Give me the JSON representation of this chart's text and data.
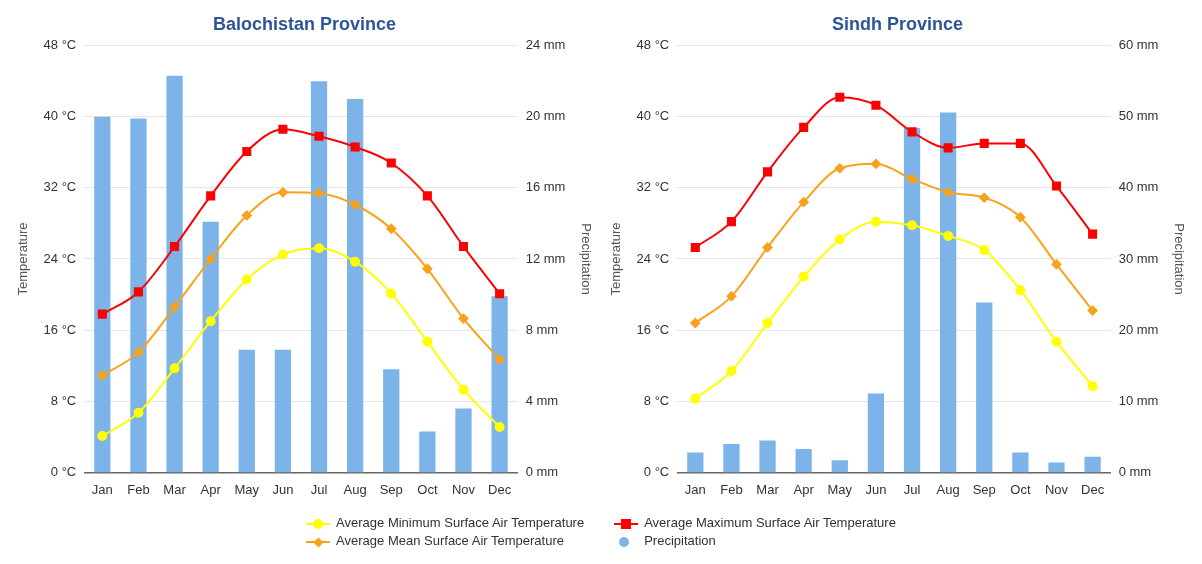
{
  "chart_data": [
    {
      "type": "bar",
      "title": "Balochistan Province",
      "ylabel": "Temperature",
      "y2label": "Precipitation",
      "categories": [
        "Jan",
        "Feb",
        "Mar",
        "Apr",
        "May",
        "Jun",
        "Jul",
        "Aug",
        "Sep",
        "Oct",
        "Nov",
        "Dec"
      ],
      "series": [
        {
          "name": "Average Minimum Surface Air Temperature",
          "type": "line",
          "color": "#ffff00",
          "marker": "circle",
          "values": [
            4.1,
            6.7,
            11.7,
            17.0,
            21.7,
            24.5,
            25.2,
            23.7,
            20.1,
            14.7,
            9.3,
            5.1
          ]
        },
        {
          "name": "Average Mean Surface Air Temperature",
          "type": "line",
          "color": "#f7a21b",
          "marker": "diamond",
          "values": [
            10.9,
            13.5,
            18.6,
            24.0,
            28.9,
            31.5,
            31.4,
            30.1,
            27.4,
            22.9,
            17.3,
            12.7
          ]
        },
        {
          "name": "Average Maximum Surface Air Temperature",
          "type": "line",
          "color": "#ff0000",
          "marker": "square",
          "values": [
            17.8,
            20.3,
            25.4,
            31.1,
            36.1,
            38.6,
            37.8,
            36.6,
            34.8,
            31.1,
            25.4,
            20.1
          ]
        },
        {
          "name": "Precipitation",
          "axis": "y2",
          "color": "#7cb3e9",
          "values": [
            20.0,
            19.9,
            22.3,
            14.1,
            6.9,
            6.9,
            22.0,
            21.0,
            5.8,
            2.3,
            3.6,
            9.9
          ]
        }
      ],
      "ylim": [
        0,
        48
      ],
      "yticks": [
        {
          "value": 0,
          "label": "0 °C"
        },
        {
          "value": 8,
          "label": "8 °C"
        },
        {
          "value": 16,
          "label": "16 °C"
        },
        {
          "value": 24,
          "label": "24 °C"
        },
        {
          "value": 32,
          "label": "32 °C"
        },
        {
          "value": 40,
          "label": "40 °C"
        },
        {
          "value": 48,
          "label": "48 °C"
        }
      ],
      "y2lim": [
        0,
        24
      ],
      "y2ticks": [
        {
          "value": 0,
          "label": "0 mm"
        },
        {
          "value": 4,
          "label": "4 mm"
        },
        {
          "value": 8,
          "label": "8 mm"
        },
        {
          "value": 12,
          "label": "12 mm"
        },
        {
          "value": 16,
          "label": "16 mm"
        },
        {
          "value": 20,
          "label": "20 mm"
        },
        {
          "value": 24,
          "label": "24 mm"
        }
      ],
      "grid": "y",
      "legend": "bottom"
    },
    {
      "type": "bar",
      "title": "Sindh Province",
      "ylabel": "Temperature",
      "y2label": "Precipitation",
      "categories": [
        "Jan",
        "Feb",
        "Mar",
        "Apr",
        "May",
        "Jun",
        "Jul",
        "Aug",
        "Sep",
        "Oct",
        "Nov",
        "Dec"
      ],
      "series": [
        {
          "type": "line",
          "color": "#ffff00",
          "marker": "circle",
          "values": [
            8.3,
            11.4,
            16.8,
            22.0,
            26.2,
            28.2,
            27.8,
            26.6,
            25.0,
            20.5,
            14.7,
            9.7
          ]
        },
        {
          "type": "line",
          "color": "#f7a21b",
          "marker": "diamond",
          "values": [
            16.8,
            19.8,
            25.3,
            30.4,
            34.2,
            34.7,
            33.0,
            31.5,
            30.9,
            28.7,
            23.4,
            18.2
          ]
        },
        {
          "type": "line",
          "color": "#ff0000",
          "marker": "square",
          "values": [
            25.3,
            28.2,
            33.8,
            38.8,
            42.2,
            41.3,
            38.3,
            36.5,
            37.0,
            37.0,
            32.2,
            26.8
          ]
        },
        {
          "axis": "y2",
          "color": "#7cb3e9",
          "values": [
            2.8,
            4.0,
            4.5,
            3.3,
            1.7,
            11.1,
            48.4,
            50.6,
            23.9,
            2.8,
            1.4,
            2.2
          ]
        }
      ],
      "ylim": [
        0,
        48
      ],
      "yticks": [
        {
          "value": 0,
          "label": "0 °C"
        },
        {
          "value": 8,
          "label": "8 °C"
        },
        {
          "value": 16,
          "label": "16 °C"
        },
        {
          "value": 24,
          "label": "24 °C"
        },
        {
          "value": 32,
          "label": "32 °C"
        },
        {
          "value": 40,
          "label": "40 °C"
        },
        {
          "value": 48,
          "label": "48 °C"
        }
      ],
      "y2lim": [
        0,
        60
      ],
      "y2ticks": [
        {
          "value": 0,
          "label": "0 mm"
        },
        {
          "value": 10,
          "label": "10 mm"
        },
        {
          "value": 20,
          "label": "20 mm"
        },
        {
          "value": 30,
          "label": "30 mm"
        },
        {
          "value": 40,
          "label": "40 mm"
        },
        {
          "value": 50,
          "label": "50 mm"
        },
        {
          "value": 60,
          "label": "60 mm"
        }
      ],
      "grid": "y"
    }
  ]
}
